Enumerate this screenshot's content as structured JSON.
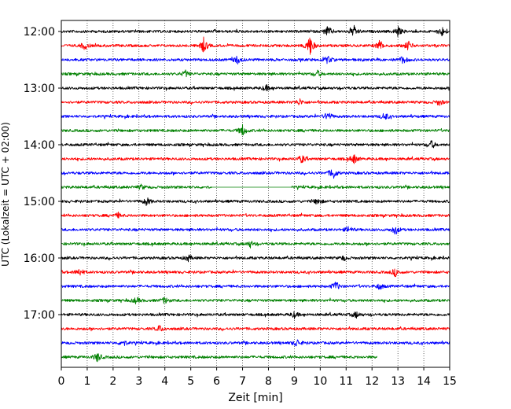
{
  "chart_data": {
    "type": "line",
    "xlabel": "Zeit  [min]",
    "ylabel": "UTC (Lokalzeit = UTC + 02:00)",
    "xlim": [
      0,
      15
    ],
    "x_ticks": [
      0,
      1,
      2,
      3,
      4,
      5,
      6,
      7,
      8,
      9,
      10,
      11,
      12,
      13,
      14,
      15
    ],
    "y_tick_labels": [
      "12:00",
      "13:00",
      "14:00",
      "15:00",
      "16:00",
      "17:00"
    ],
    "grid": {
      "vertical": true,
      "style": "dotted"
    },
    "colors": [
      "#000000",
      "#ff0000",
      "#0000ff",
      "#008000"
    ],
    "traces": [
      {
        "start": "12:00",
        "color": "#000000",
        "x_range": [
          0,
          15
        ],
        "events": [
          {
            "x": 10.3,
            "amp": 0.7
          },
          {
            "x": 11.3,
            "amp": 0.7
          },
          {
            "x": 13.0,
            "amp": 0.6
          },
          {
            "x": 14.7,
            "amp": 0.6
          }
        ]
      },
      {
        "start": "12:15",
        "color": "#ff0000",
        "x_range": [
          0,
          15
        ],
        "events": [
          {
            "x": 0.9,
            "amp": 0.5
          },
          {
            "x": 5.5,
            "amp": 1.0
          },
          {
            "x": 9.6,
            "amp": 1.4
          },
          {
            "x": 12.3,
            "amp": 0.7
          },
          {
            "x": 13.4,
            "amp": 0.6
          }
        ]
      },
      {
        "start": "12:30",
        "color": "#0000ff",
        "x_range": [
          0,
          15
        ],
        "events": [
          {
            "x": 6.8,
            "amp": 0.5
          },
          {
            "x": 10.3,
            "amp": 0.5
          },
          {
            "x": 13.2,
            "amp": 0.5
          }
        ]
      },
      {
        "start": "12:45",
        "color": "#008000",
        "x_range": [
          0,
          15
        ],
        "events": [
          {
            "x": 4.8,
            "amp": 0.4
          },
          {
            "x": 9.9,
            "amp": 0.4
          }
        ]
      },
      {
        "start": "13:00",
        "color": "#000000",
        "x_range": [
          0,
          15
        ],
        "events": [
          {
            "x": 7.9,
            "amp": 0.4
          }
        ]
      },
      {
        "start": "13:15",
        "color": "#ff0000",
        "x_range": [
          0,
          15
        ],
        "events": [
          {
            "x": 9.2,
            "amp": 0.4
          },
          {
            "x": 14.6,
            "amp": 0.4
          }
        ]
      },
      {
        "start": "13:30",
        "color": "#0000ff",
        "x_range": [
          0,
          15
        ],
        "events": [
          {
            "x": 10.3,
            "amp": 0.6
          },
          {
            "x": 12.5,
            "amp": 0.5
          }
        ]
      },
      {
        "start": "13:45",
        "color": "#008000",
        "x_range": [
          0,
          15
        ],
        "events": [
          {
            "x": 7.0,
            "amp": 0.7
          }
        ]
      },
      {
        "start": "14:00",
        "color": "#000000",
        "x_range": [
          0,
          15
        ],
        "events": [
          {
            "x": 14.3,
            "amp": 0.5
          }
        ]
      },
      {
        "start": "14:15",
        "color": "#ff0000",
        "x_range": [
          0,
          15
        ],
        "events": [
          {
            "x": 9.3,
            "amp": 0.5
          },
          {
            "x": 11.3,
            "amp": 0.6
          }
        ]
      },
      {
        "start": "14:30",
        "color": "#0000ff",
        "x_range": [
          0,
          15
        ],
        "events": [
          {
            "x": 10.5,
            "amp": 0.8
          }
        ]
      },
      {
        "start": "14:45",
        "color": "#008000",
        "x_range": [
          0,
          5.8
        ],
        "x_range2": [
          8.9,
          15
        ],
        "events": [
          {
            "x": 3.1,
            "amp": 0.3
          }
        ]
      },
      {
        "start": "15:00",
        "color": "#000000",
        "x_range": [
          0,
          15
        ],
        "events": [
          {
            "x": 3.3,
            "amp": 0.5
          },
          {
            "x": 9.9,
            "amp": 0.4
          }
        ]
      },
      {
        "start": "15:15",
        "color": "#ff0000",
        "x_range": [
          0,
          15
        ],
        "events": [
          {
            "x": 2.2,
            "amp": 0.3
          }
        ]
      },
      {
        "start": "15:30",
        "color": "#0000ff",
        "x_range": [
          0,
          15
        ],
        "events": [
          {
            "x": 11.1,
            "amp": 0.4
          },
          {
            "x": 12.9,
            "amp": 0.6
          }
        ]
      },
      {
        "start": "15:45",
        "color": "#008000",
        "x_range": [
          0,
          15
        ],
        "events": [
          {
            "x": 7.3,
            "amp": 0.4
          }
        ]
      },
      {
        "start": "16:00",
        "color": "#000000",
        "x_range": [
          0,
          15
        ],
        "events": [
          {
            "x": 4.9,
            "amp": 0.4
          },
          {
            "x": 10.9,
            "amp": 0.3
          }
        ]
      },
      {
        "start": "16:15",
        "color": "#ff0000",
        "x_range": [
          0,
          15
        ],
        "events": [
          {
            "x": 0.7,
            "amp": 0.5
          },
          {
            "x": 12.9,
            "amp": 0.5
          }
        ]
      },
      {
        "start": "16:30",
        "color": "#0000ff",
        "x_range": [
          0,
          15
        ],
        "events": [
          {
            "x": 10.6,
            "amp": 0.6
          },
          {
            "x": 12.3,
            "amp": 0.4
          }
        ]
      },
      {
        "start": "16:45",
        "color": "#008000",
        "x_range": [
          0,
          15
        ],
        "events": [
          {
            "x": 2.9,
            "amp": 0.4
          },
          {
            "x": 4.0,
            "amp": 0.4
          }
        ]
      },
      {
        "start": "17:00",
        "color": "#000000",
        "x_range": [
          0,
          15
        ],
        "events": [
          {
            "x": 9.0,
            "amp": 0.4
          },
          {
            "x": 11.4,
            "amp": 0.4
          }
        ]
      },
      {
        "start": "17:15",
        "color": "#ff0000",
        "x_range": [
          0,
          15
        ],
        "events": [
          {
            "x": 3.8,
            "amp": 0.4
          }
        ]
      },
      {
        "start": "17:30",
        "color": "#0000ff",
        "x_range": [
          0,
          15
        ],
        "events": [
          {
            "x": 2.4,
            "amp": 0.4
          },
          {
            "x": 9.1,
            "amp": 0.5
          }
        ]
      },
      {
        "start": "17:45",
        "color": "#008000",
        "x_range": [
          0,
          12.2
        ],
        "events": [
          {
            "x": 1.4,
            "amp": 0.6
          }
        ]
      }
    ]
  }
}
